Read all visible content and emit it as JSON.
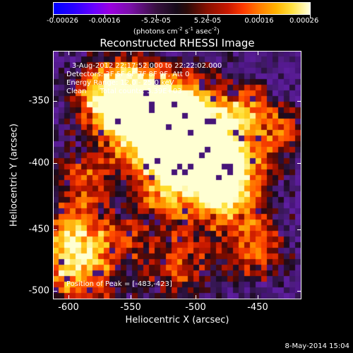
{
  "colorbar": {
    "tick_labels": [
      "-0.00026",
      "-0.00016",
      "-5.2e-05",
      "5.2e-05",
      "0.00016",
      "0.00026"
    ],
    "units_prefix": "(photons cm",
    "units_exp1": "-2",
    "units_mid": " s",
    "units_exp2": "-1",
    "units_mid2": " asec",
    "units_exp3": "-2",
    "units_suffix": ")"
  },
  "plot": {
    "title": "Reconstructed RHESSI Image",
    "info_lines": [
      "3-Aug-2012 22:17:52.000 to 22:22:02.000",
      "Detectors: 3F 5F 6F 7F 8F 9F, Att 0",
      "Energy Range: 12.0 - 25.0 keV",
      "Clean      Total counts: 3.39E+03"
    ],
    "peak_label": "Position of Peak = [-483,-423]",
    "xlabel": "Heliocentric X (arcsec)",
    "ylabel": "Heliocentric Y (arcsec)",
    "x_tick_labels": [
      "-600",
      "-550",
      "-500",
      "-450"
    ],
    "y_tick_labels": [
      "-350",
      "-400",
      "-450",
      "-500"
    ]
  },
  "timestamp": "8-May-2014 15:04"
}
